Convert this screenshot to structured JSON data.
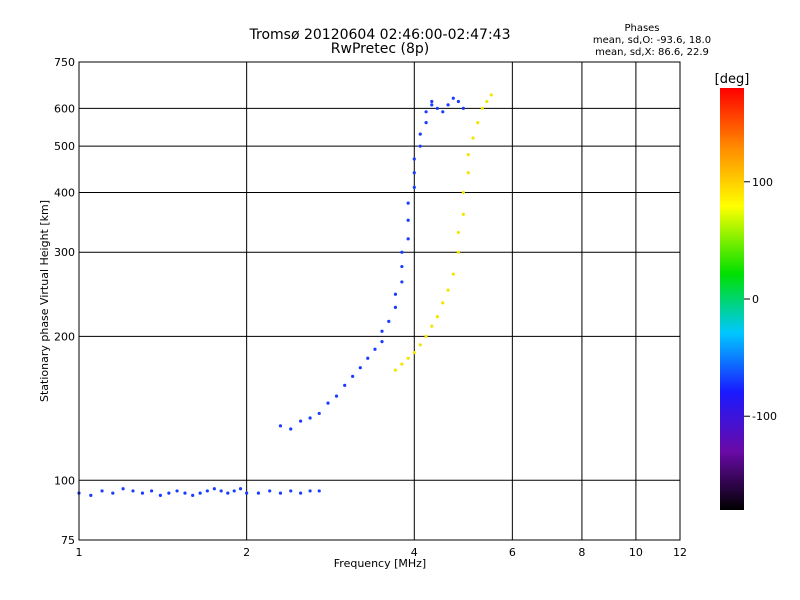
{
  "chart_data": {
    "type": "scatter",
    "title": "Tromsø 20120604 02:46:00-02:47:43",
    "subtitle": "RwPretec (8p)",
    "xlabel": "Frequency [MHz]",
    "ylabel": "Stationary phase Virtual Height [km]",
    "xscale": "log",
    "yscale": "log",
    "xlim": [
      1,
      12
    ],
    "ylim": [
      75,
      750
    ],
    "xticks": [
      1,
      2,
      4,
      6,
      8,
      10,
      12
    ],
    "xtick_labels": [
      "1",
      "2",
      "4",
      "6",
      "8",
      "10",
      "12"
    ],
    "yticks": [
      75,
      100,
      200,
      300,
      400,
      500,
      600,
      750
    ],
    "ytick_labels": [
      "75",
      "100",
      "200",
      "300",
      "400",
      "500",
      "600",
      "750"
    ],
    "grid": true,
    "phases_info": {
      "heading": "Phases",
      "line_o": "mean, sd,O: -93.6, 18.0",
      "line_x": "mean, sd,X: 86.6, 22.9"
    },
    "colorbar": {
      "label": "[deg]",
      "range": [
        -180,
        180
      ],
      "ticks": [
        100,
        0,
        -100
      ],
      "tick_labels": [
        "100",
        "0",
        "-100"
      ]
    },
    "series": [
      {
        "name": "O",
        "phase_deg": -100,
        "x": [
          1.0,
          1.05,
          1.1,
          1.15,
          1.2,
          1.25,
          1.3,
          1.35,
          1.4,
          1.45,
          1.5,
          1.55,
          1.6,
          1.65,
          1.7,
          1.75,
          1.8,
          1.85,
          1.9,
          1.95,
          2.0,
          2.1,
          2.2,
          2.3,
          2.4,
          2.5,
          2.6,
          2.7,
          2.3,
          2.4,
          2.5,
          2.6,
          2.7,
          2.8,
          2.9,
          3.0,
          3.1,
          3.2,
          3.3,
          3.4,
          3.5,
          3.5,
          3.6,
          3.7,
          3.7,
          3.8,
          3.8,
          3.8,
          3.9,
          3.9,
          3.9,
          4.0,
          4.0,
          4.0,
          4.1,
          4.1,
          4.2,
          4.2,
          4.3,
          4.3,
          4.4,
          4.5,
          4.6,
          4.7,
          4.8,
          4.9
        ],
        "y": [
          94,
          93,
          95,
          94,
          96,
          95,
          94,
          95,
          93,
          94,
          95,
          94,
          93,
          94,
          95,
          96,
          95,
          94,
          95,
          96,
          94,
          94,
          95,
          94,
          95,
          94,
          95,
          95,
          130,
          128,
          133,
          135,
          138,
          145,
          150,
          158,
          165,
          172,
          180,
          188,
          195,
          205,
          215,
          230,
          245,
          260,
          280,
          300,
          320,
          350,
          380,
          410,
          440,
          470,
          500,
          530,
          560,
          590,
          610,
          620,
          600,
          590,
          610,
          630,
          620,
          600
        ]
      },
      {
        "name": "X",
        "phase_deg": 100,
        "x": [
          3.7,
          3.8,
          3.9,
          4.0,
          4.1,
          4.2,
          4.3,
          4.4,
          4.5,
          4.6,
          4.7,
          4.8,
          4.8,
          4.9,
          4.9,
          5.0,
          5.0,
          5.1,
          5.2,
          5.3,
          5.4,
          5.5
        ],
        "y": [
          170,
          175,
          180,
          185,
          192,
          200,
          210,
          220,
          235,
          250,
          270,
          300,
          330,
          360,
          400,
          440,
          480,
          520,
          560,
          600,
          620,
          640
        ]
      }
    ]
  }
}
